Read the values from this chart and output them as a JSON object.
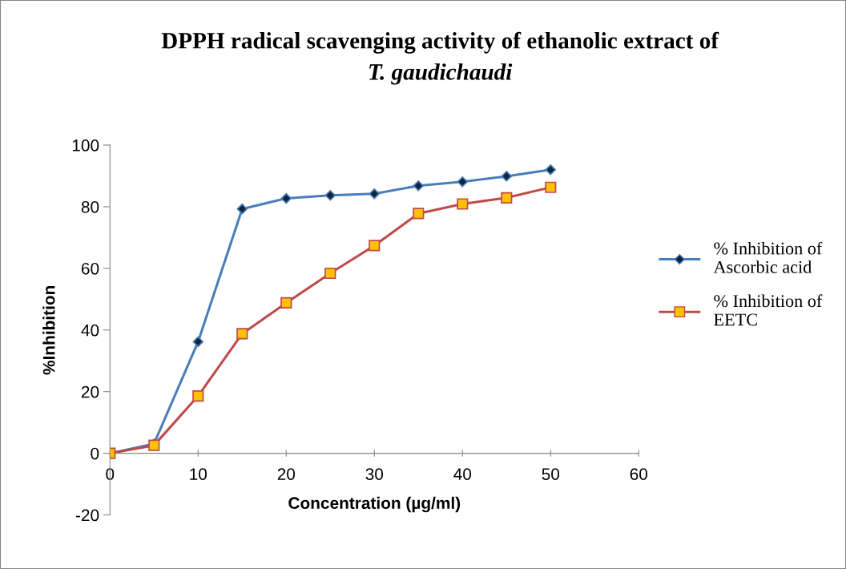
{
  "chart_data": {
    "type": "line",
    "title": "DPPH radical scavenging activity of ethanolic extract of",
    "subtitle": "T. gaudichaudi",
    "xlabel": "Concentration (µg/ml)",
    "ylabel": "%Inhibition",
    "x": [
      0,
      5,
      10,
      15,
      20,
      25,
      30,
      35,
      40,
      45,
      50
    ],
    "series": [
      {
        "name": "% Inhibition of\nAscorbic acid",
        "color": "#4a7ebb",
        "marker": "diamond",
        "values": [
          0,
          3.1,
          36.2,
          79.3,
          82.7,
          83.7,
          84.2,
          86.8,
          88.1,
          89.9,
          92
        ]
      },
      {
        "name": "% Inhibition of\nEETC",
        "color": "#be4b48",
        "marker": "square",
        "values": [
          0,
          2.6,
          18.6,
          38.8,
          48.8,
          58.4,
          67.4,
          77.8,
          80.9,
          82.9,
          86.3
        ]
      }
    ],
    "xlim": [
      0,
      60
    ],
    "xticks": [
      0,
      10,
      20,
      30,
      40,
      50,
      60
    ],
    "ylim": [
      -20,
      100
    ],
    "yticks": [
      -20,
      0,
      20,
      40,
      60,
      80,
      100
    ],
    "grid": false,
    "legend": "right",
    "line_style": "solid"
  }
}
